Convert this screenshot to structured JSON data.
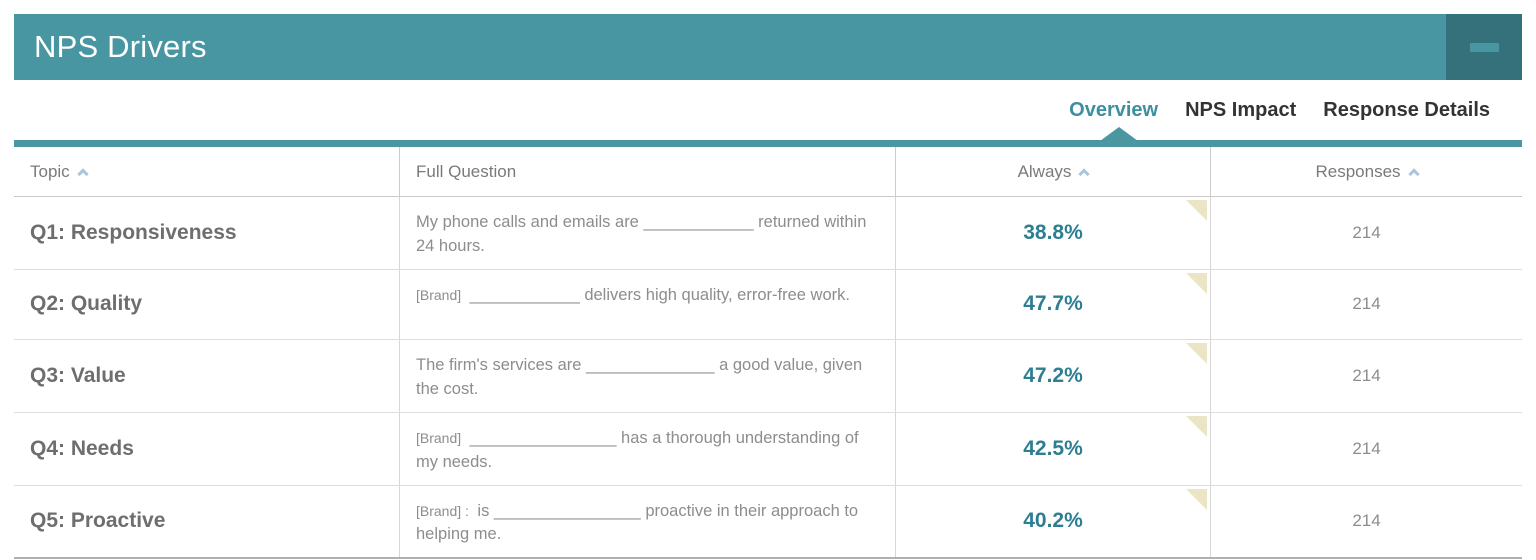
{
  "panel": {
    "title": "NPS Drivers",
    "accent_color": "#4796a2",
    "minimize_icon": "minus"
  },
  "tabs": [
    {
      "label": "Overview",
      "active": true
    },
    {
      "label": "NPS Impact",
      "active": false
    },
    {
      "label": "Response Details",
      "active": false
    }
  ],
  "table": {
    "columns": [
      {
        "label": "Topic",
        "sortable": true,
        "sort": "asc"
      },
      {
        "label": "Full Question",
        "sortable": false
      },
      {
        "label": "Always",
        "sortable": true,
        "sort": "asc"
      },
      {
        "label": "Responses",
        "sortable": true,
        "sort": "asc"
      }
    ],
    "rows": [
      {
        "topic": "Q1: Responsiveness",
        "brand": "",
        "question": "My phone calls and emails are ____________ returned within 24 hours.",
        "always": "38.8%",
        "responses": "214"
      },
      {
        "topic": "Q2: Quality",
        "brand": "[Brand]",
        "question": "____________ delivers high quality, error-free work.",
        "always": "47.7%",
        "responses": "214"
      },
      {
        "topic": "Q3: Value",
        "brand": "",
        "question": "The firm's services are ______________ a good value, given the cost.",
        "always": "47.2%",
        "responses": "214"
      },
      {
        "topic": "Q4: Needs",
        "brand": "[Brand]",
        "question": "________________ has a thorough understanding of my needs.",
        "always": "42.5%",
        "responses": "214"
      },
      {
        "topic": "Q5: Proactive",
        "brand": "[Brand] :",
        "question": "is ________________ proactive in their approach to helping me.",
        "always": "40.2%",
        "responses": "214"
      }
    ],
    "flag_color": "#ece5c5",
    "value_color": "#2e7e92"
  }
}
